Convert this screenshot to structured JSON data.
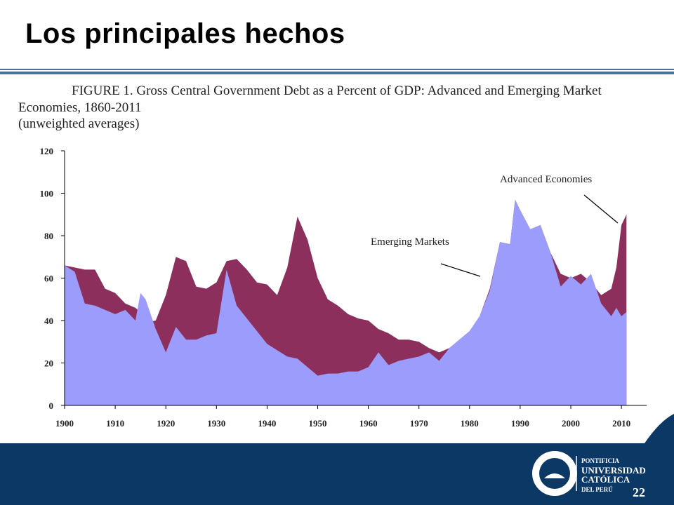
{
  "slide": {
    "title": "Los principales hechos",
    "page_number": "22",
    "logo_lines": [
      "PONTIFICIA",
      "UNIVERSIDAD",
      "CATÓLICA",
      "DEL PERÚ"
    ]
  },
  "chart_data": {
    "type": "area",
    "title": "FIGURE 1. Gross Central Government Debt as a Percent of GDP: Advanced and Emerging Market Economies, 1860-2011",
    "subtitle": "(unweighted averages)",
    "annotations": [
      "Advanced Economies",
      "Emerging Markets"
    ],
    "x": [
      1900,
      1902,
      1904,
      1906,
      1908,
      1910,
      1912,
      1914,
      1915,
      1916,
      1918,
      1920,
      1922,
      1924,
      1926,
      1928,
      1930,
      1932,
      1934,
      1936,
      1938,
      1940,
      1942,
      1944,
      1946,
      1948,
      1950,
      1952,
      1954,
      1956,
      1958,
      1960,
      1962,
      1964,
      1966,
      1968,
      1970,
      1972,
      1974,
      1976,
      1978,
      1980,
      1982,
      1984,
      1986,
      1988,
      1989,
      1990,
      1992,
      1994,
      1996,
      1998,
      2000,
      2002,
      2004,
      2006,
      2008,
      2009,
      2010,
      2011
    ],
    "series": [
      {
        "name": "Advanced Economies",
        "color": "#8c2f5c",
        "values": [
          66,
          65,
          64,
          64,
          55,
          53,
          48,
          46,
          44,
          39,
          40,
          52,
          70,
          68,
          56,
          55,
          58,
          68,
          69,
          64,
          58,
          57,
          52,
          65,
          89,
          78,
          60,
          50,
          47,
          43,
          41,
          40,
          36,
          34,
          31,
          31,
          30,
          27,
          25,
          27,
          31,
          35,
          42,
          55,
          77,
          76,
          97,
          92,
          83,
          85,
          72,
          62,
          60,
          62,
          58,
          52,
          55,
          65,
          85,
          90
        ]
      },
      {
        "name": "Emerging Markets",
        "color": "#9c9cfc",
        "values": [
          66,
          63,
          48,
          47,
          45,
          43,
          45,
          40,
          53,
          50,
          36,
          25,
          37,
          31,
          31,
          33,
          34,
          64,
          47,
          41,
          35,
          29,
          26,
          23,
          22,
          18,
          14,
          15,
          15,
          16,
          16,
          18,
          25,
          19,
          21,
          22,
          23,
          25,
          21,
          27,
          31,
          35,
          42,
          54,
          77,
          76,
          97,
          92,
          83,
          85,
          72,
          56,
          61,
          57,
          62,
          48,
          42,
          46,
          42,
          44
        ]
      }
    ],
    "xlim": [
      1900,
      2015
    ],
    "ylim": [
      0,
      120
    ],
    "xticks": [
      1900,
      1910,
      1920,
      1930,
      1940,
      1950,
      1960,
      1970,
      1980,
      1990,
      2000,
      2010
    ],
    "yticks": [
      0,
      20,
      40,
      60,
      80,
      100,
      120
    ]
  }
}
